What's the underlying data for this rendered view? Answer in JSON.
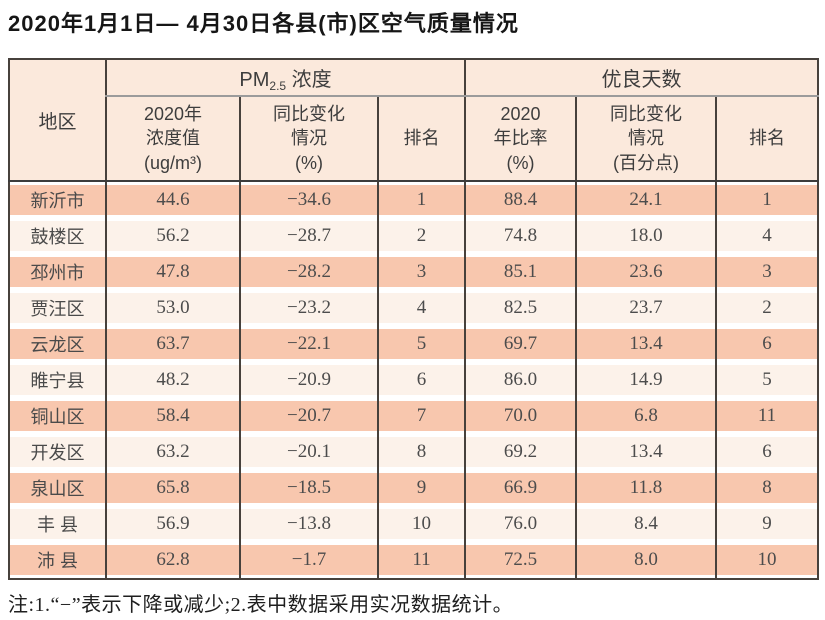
{
  "page": {
    "title": "2020年1月1日— 4月30日各县(市)区空气质量情况",
    "note": "注:1.“−”表示下降或减少;2.表中数据采用实况数据统计。"
  },
  "colors": {
    "row_salmon": "#f8c7ae",
    "row_light": "#fcf2ea",
    "header_peach": "#fbe9dc",
    "border_dark": "#47413c",
    "group_divider_gray": "#9b9b9b"
  },
  "table": {
    "region_header": "地区",
    "groups": {
      "pm": {
        "prefix": "PM",
        "sub": "2.5",
        "suffix": " 浓度"
      },
      "good": {
        "label": "优良天数"
      }
    },
    "columns": {
      "pm_value": {
        "l1": "2020年",
        "l2": "浓度值",
        "l3": "(ug/m³)"
      },
      "pm_change": {
        "l1": "同比变化",
        "l2": "情况",
        "l3": "(%)"
      },
      "pm_rank": {
        "label": "排名"
      },
      "good_rate": {
        "l1": "2020",
        "l2": "年比率",
        "l3": "(%)"
      },
      "good_change": {
        "l1": "同比变化",
        "l2": "情况",
        "l3": "(百分点)"
      },
      "good_rank": {
        "label": "排名"
      }
    },
    "rows": [
      {
        "region": "新沂市",
        "pm_value": "44.6",
        "pm_change": "−34.6",
        "pm_rank": "1",
        "good_rate": "88.4",
        "good_change": "24.1",
        "good_rank": "1"
      },
      {
        "region": "鼓楼区",
        "pm_value": "56.2",
        "pm_change": "−28.7",
        "pm_rank": "2",
        "good_rate": "74.8",
        "good_change": "18.0",
        "good_rank": "4"
      },
      {
        "region": "邳州市",
        "pm_value": "47.8",
        "pm_change": "−28.2",
        "pm_rank": "3",
        "good_rate": "85.1",
        "good_change": "23.6",
        "good_rank": "3"
      },
      {
        "region": "贾汪区",
        "pm_value": "53.0",
        "pm_change": "−23.2",
        "pm_rank": "4",
        "good_rate": "82.5",
        "good_change": "23.7",
        "good_rank": "2"
      },
      {
        "region": "云龙区",
        "pm_value": "63.7",
        "pm_change": "−22.1",
        "pm_rank": "5",
        "good_rate": "69.7",
        "good_change": "13.4",
        "good_rank": "6"
      },
      {
        "region": "睢宁县",
        "pm_value": "48.2",
        "pm_change": "−20.9",
        "pm_rank": "6",
        "good_rate": "86.0",
        "good_change": "14.9",
        "good_rank": "5"
      },
      {
        "region": "铜山区",
        "pm_value": "58.4",
        "pm_change": "−20.7",
        "pm_rank": "7",
        "good_rate": "70.0",
        "good_change": "6.8",
        "good_rank": "11"
      },
      {
        "region": "开发区",
        "pm_value": "63.2",
        "pm_change": "−20.1",
        "pm_rank": "8",
        "good_rate": "69.2",
        "good_change": "13.4",
        "good_rank": "6"
      },
      {
        "region": "泉山区",
        "pm_value": "65.8",
        "pm_change": "−18.5",
        "pm_rank": "9",
        "good_rate": "66.9",
        "good_change": "11.8",
        "good_rank": "8"
      },
      {
        "region": "丰 县",
        "pm_value": "56.9",
        "pm_change": "−13.8",
        "pm_rank": "10",
        "good_rate": "76.0",
        "good_change": "8.4",
        "good_rank": "9"
      },
      {
        "region": "沛 县",
        "pm_value": "62.8",
        "pm_change": "−1.7",
        "pm_rank": "11",
        "good_rate": "72.5",
        "good_change": "8.0",
        "good_rank": "10"
      }
    ]
  }
}
